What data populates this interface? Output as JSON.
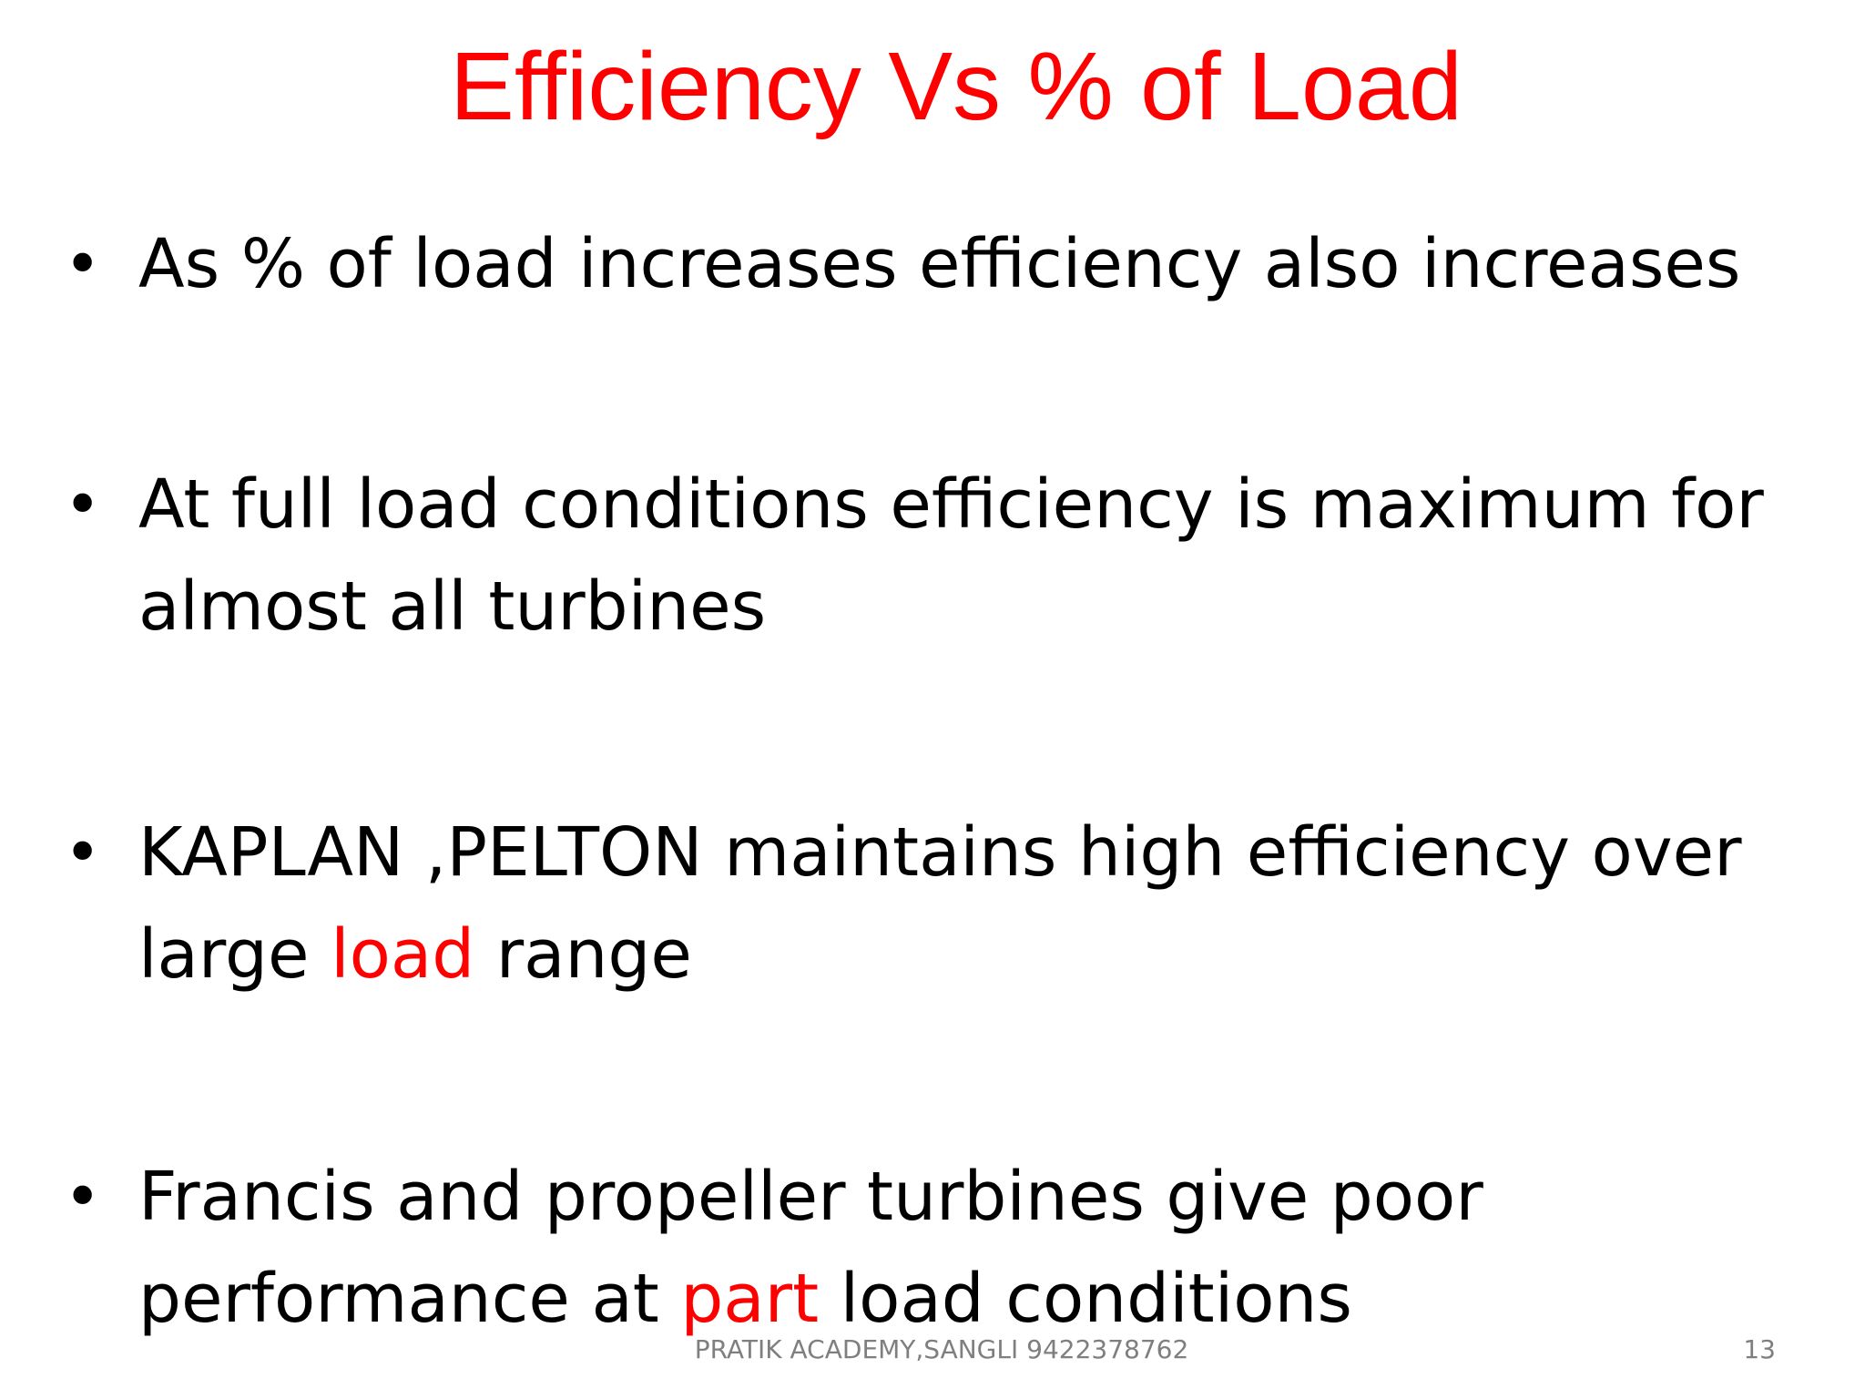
{
  "slide": {
    "title": "Efficiency Vs % of Load",
    "bullets": [
      {
        "parts": [
          {
            "text": "As % of load increases efficiency also increases",
            "highlight": false
          }
        ]
      },
      {
        "parts": [
          {
            "text": "At full load conditions efficiency is maximum for almost  all turbines",
            "highlight": false
          }
        ]
      },
      {
        "parts": [
          {
            "text": "KAPLAN ,PELTON maintains high efficiency over large ",
            "highlight": false
          },
          {
            "text": "load",
            "highlight": true
          },
          {
            "text": " range",
            "highlight": false
          }
        ]
      },
      {
        "parts": [
          {
            "text": "Francis and propeller turbines give poor performance at ",
            "highlight": false
          },
          {
            "text": "part",
            "highlight": true
          },
          {
            "text": " load conditions",
            "highlight": false
          }
        ]
      }
    ],
    "bullet_symbol": "•",
    "footer": "PRATIK ACADEMY,SANGLI 9422378762",
    "page_number": "13"
  },
  "colors": {
    "title": "#ff0000",
    "highlight": "#ff0000",
    "body_text": "#000000",
    "footer_text": "#7f7f7f",
    "background": "#ffffff"
  }
}
